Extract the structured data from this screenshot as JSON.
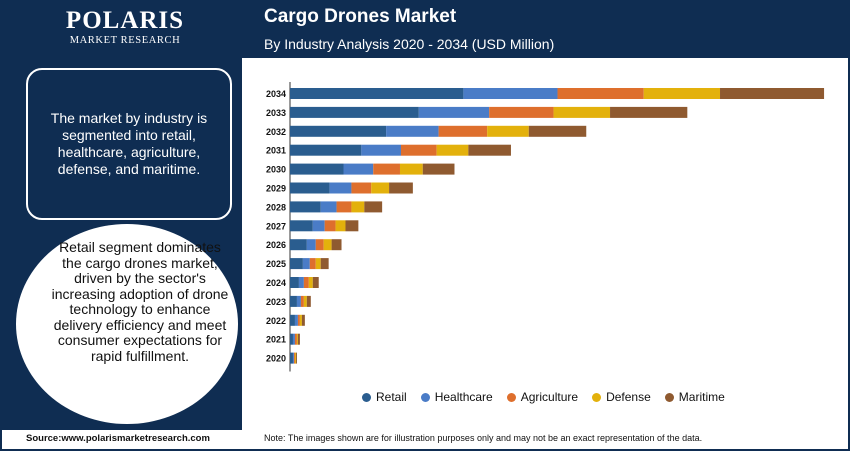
{
  "logo": {
    "name": "POLARIS",
    "sub": "MARKET RESEARCH"
  },
  "header": {
    "title": "Cargo Drones Market",
    "subtitle": "By  Industry Analysis 2020 - 2034 (USD Million)"
  },
  "left_panel": {
    "box_text": "The market by industry is segmented into retail, healthcare, agriculture, defense, and maritime.",
    "circle_text": "Retail segment dominates the cargo drones market, driven by the sector's increasing adoption of drone technology to enhance delivery efficiency and meet consumer expectations for rapid fulfillment."
  },
  "footer": {
    "source": "Source:www.polarismarketresearch.com",
    "note": "Note: The images shown are for illustration purposes only and may not be an exact representation of the data."
  },
  "chart_data": {
    "type": "bar",
    "orientation": "horizontal",
    "stacked": true,
    "categories": [
      "2034",
      "2033",
      "2032",
      "2031",
      "2030",
      "2029",
      "2028",
      "2027",
      "2026",
      "2025",
      "2024",
      "2023",
      "2022",
      "2021",
      "2020"
    ],
    "series": [
      {
        "name": "Retail",
        "color": "#2a5d8f",
        "values": [
          175,
          130,
          97,
          72,
          54,
          40,
          31,
          23,
          17,
          13,
          9,
          7,
          5,
          3,
          3
        ]
      },
      {
        "name": "Healthcare",
        "color": "#4a7cc7",
        "values": [
          95,
          71,
          53,
          40,
          30,
          22,
          16,
          12,
          9,
          7,
          5,
          4,
          3,
          2,
          1
        ]
      },
      {
        "name": "Agriculture",
        "color": "#de6f2d",
        "values": [
          87,
          65,
          49,
          36,
          27,
          20,
          15,
          11,
          8,
          6,
          5,
          3,
          2,
          2,
          1
        ]
      },
      {
        "name": "Defense",
        "color": "#e3b10c",
        "values": [
          77,
          57,
          42,
          32,
          23,
          18,
          13,
          10,
          8,
          5,
          4,
          3,
          2,
          1,
          1
        ]
      },
      {
        "name": "Maritime",
        "color": "#8f5a30",
        "values": [
          105,
          78,
          58,
          43,
          32,
          24,
          18,
          13,
          10,
          8,
          6,
          4,
          3,
          2,
          1
        ]
      }
    ],
    "xlim": [
      0,
      545
    ]
  }
}
